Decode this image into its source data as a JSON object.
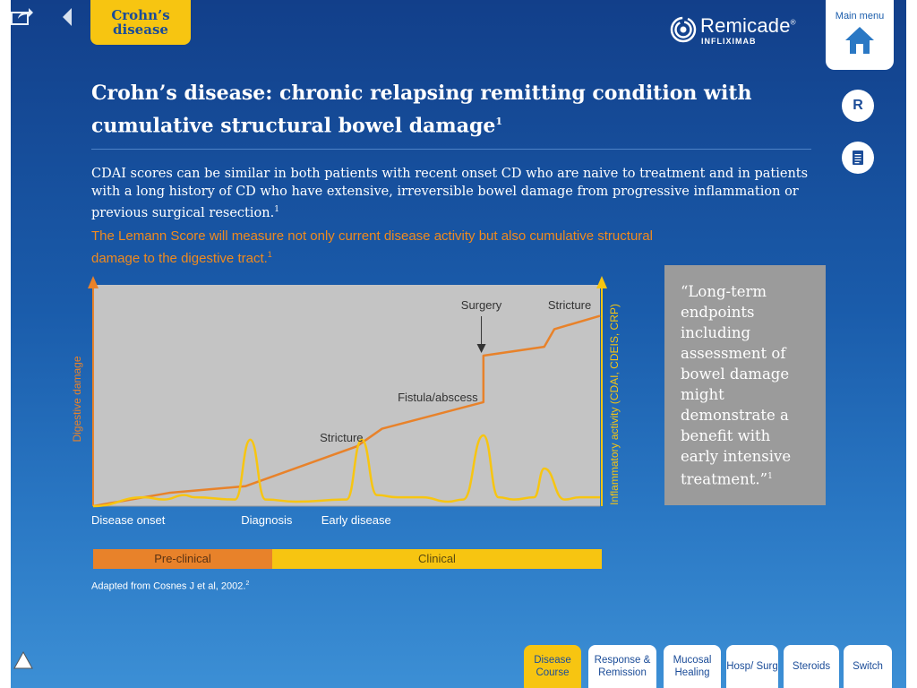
{
  "section_tab": "Crohn’s disease",
  "brand": {
    "name": "Remicade",
    "reg": "®",
    "sub": "INFLIXIMAB"
  },
  "main_menu": {
    "label": "Main menu"
  },
  "side_buttons": {
    "r_label": "R"
  },
  "headline": {
    "text": "Crohn’s disease: chronic relapsing remitting condition with cumulative structural bowel damage",
    "ref": "1"
  },
  "intro": {
    "text": "CDAI scores can be similar in both patients with recent onset CD who are naive to treatment and in patients with a long history of CD who have extensive, irreversible bowel damage from progressive inflammation or previous surgical resection.",
    "ref": "1"
  },
  "lemann": {
    "text": "The Lemann Score will measure not only current disease activity but also cumulative structural damage to the digestive tract.",
    "ref": "1"
  },
  "chart_data": {
    "type": "line",
    "ylabel_left": "Digestive damage",
    "ylabel_right": "Inflammatory activity (CDAI, CDEIS, CRP)",
    "x_tick_labels": [
      "Disease onset",
      "Diagnosis",
      "Early disease"
    ],
    "annotations": [
      "Surgery",
      "Stricture",
      "Fistula/abscess",
      "Stricture"
    ],
    "series": [
      {
        "color": "#e8822a",
        "x": [
          0,
          15,
          30,
          52,
          57,
          77,
          77,
          89,
          91,
          100
        ],
        "y": [
          0,
          6,
          9,
          27,
          35,
          47,
          68,
          72,
          80,
          86
        ]
      },
      {
        "color": "#f7c511",
        "x": [
          0,
          10,
          14,
          18,
          20,
          28,
          31,
          34,
          40,
          50,
          53,
          56,
          60,
          65,
          70,
          73,
          77,
          80,
          83,
          87,
          89,
          93,
          96,
          100
        ],
        "y": [
          0,
          4,
          3,
          5,
          4,
          3,
          30,
          3,
          2,
          3,
          30,
          5,
          4,
          4,
          2,
          3,
          32,
          4,
          3,
          4,
          17,
          3,
          4,
          4
        ]
      }
    ],
    "ylim": [
      0,
      100
    ]
  },
  "phases": {
    "pre": "Pre-clinical",
    "clinical": "Clinical"
  },
  "source": {
    "text": "Adapted from Cosnes J et al, 2002.",
    "ref": "2"
  },
  "quote": {
    "text": "“Long-term endpoints including assessment of bowel damage might demonstrate a benefit with early intensive treatment.”",
    "ref": "1"
  },
  "tabs": [
    {
      "label": "Disease Course",
      "active": true
    },
    {
      "label": "Response & Remission",
      "active": false
    },
    {
      "label": "Mucosal Healing",
      "active": false
    },
    {
      "label": "Hosp/ Surg",
      "active": false
    },
    {
      "label": "Steroids",
      "active": false
    },
    {
      "label": "Switch",
      "active": false
    }
  ]
}
